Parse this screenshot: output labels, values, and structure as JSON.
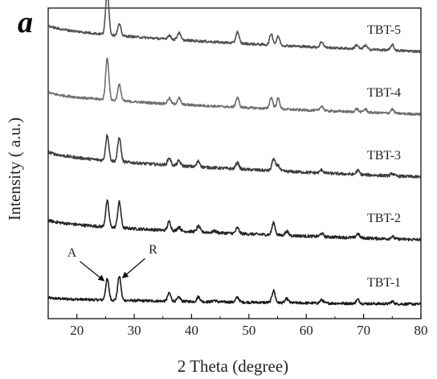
{
  "chart_data": {
    "type": "line",
    "panel_label": "a",
    "xlabel": "2 Theta (degree)",
    "ylabel": "Intensity ( a.u.)",
    "xlim": [
      15,
      80
    ],
    "xticks": [
      20,
      30,
      40,
      50,
      60,
      70,
      80
    ],
    "yticks_shown": false,
    "grid": false,
    "series": [
      {
        "name": "TBT-1",
        "color": "#1a1a1a",
        "offset": 0,
        "base_start": 8,
        "base_end": 0,
        "noise": 1.6,
        "peaks": [
          [
            25.3,
            26
          ],
          [
            27.4,
            30
          ],
          [
            36.1,
            10
          ],
          [
            37.8,
            5
          ],
          [
            41.2,
            6
          ],
          [
            44.0,
            2
          ],
          [
            48.0,
            6
          ],
          [
            54.3,
            15
          ],
          [
            56.6,
            5
          ],
          [
            62.7,
            4
          ],
          [
            69.0,
            5
          ],
          [
            75.0,
            3
          ]
        ]
      },
      {
        "name": "TBT-2",
        "color": "#262626",
        "offset": 80,
        "base_start": 25,
        "base_end": 0,
        "noise": 1.8,
        "peaks": [
          [
            25.3,
            32
          ],
          [
            27.4,
            32
          ],
          [
            36.1,
            11
          ],
          [
            37.8,
            5
          ],
          [
            41.2,
            7
          ],
          [
            44.0,
            2
          ],
          [
            48.0,
            7
          ],
          [
            54.3,
            15
          ],
          [
            56.6,
            5
          ],
          [
            62.7,
            4
          ],
          [
            69.0,
            5
          ],
          [
            75.0,
            3
          ]
        ]
      },
      {
        "name": "TBT-3",
        "color": "#3d3d3d",
        "offset": 158,
        "base_start": 32,
        "base_end": 0,
        "noise": 1.8,
        "peaks": [
          [
            25.3,
            32
          ],
          [
            27.4,
            30
          ],
          [
            36.1,
            9
          ],
          [
            37.8,
            6
          ],
          [
            41.2,
            7
          ],
          [
            48.0,
            8
          ],
          [
            54.3,
            15
          ],
          [
            55.1,
            7
          ],
          [
            62.7,
            4
          ],
          [
            69.0,
            5
          ],
          [
            75.0,
            3
          ]
        ]
      },
      {
        "name": "TBT-4",
        "color": "#6e6e6e",
        "offset": 236,
        "base_start": 28,
        "base_end": 0,
        "noise": 1.5,
        "peaks": [
          [
            25.3,
            52
          ],
          [
            27.4,
            20
          ],
          [
            36.1,
            7
          ],
          [
            37.8,
            8
          ],
          [
            48.0,
            12
          ],
          [
            53.9,
            14
          ],
          [
            55.1,
            13
          ],
          [
            62.7,
            6
          ],
          [
            68.8,
            4
          ],
          [
            70.3,
            4
          ],
          [
            75.0,
            5
          ]
        ]
      },
      {
        "name": "TBT-5",
        "color": "#505050",
        "offset": 314,
        "base_start": 33,
        "base_end": 0,
        "noise": 1.5,
        "peaks": [
          [
            25.3,
            54
          ],
          [
            27.4,
            14
          ],
          [
            36.1,
            5
          ],
          [
            37.8,
            9
          ],
          [
            48.0,
            14
          ],
          [
            53.9,
            14
          ],
          [
            55.1,
            11
          ],
          [
            62.7,
            7
          ],
          [
            68.8,
            5
          ],
          [
            70.3,
            5
          ],
          [
            75.0,
            7
          ]
        ]
      }
    ],
    "annotations": [
      {
        "text": "A",
        "target_series": "TBT-1",
        "target_x": 25.3
      },
      {
        "text": "R",
        "target_series": "TBT-1",
        "target_x": 27.4
      }
    ]
  }
}
